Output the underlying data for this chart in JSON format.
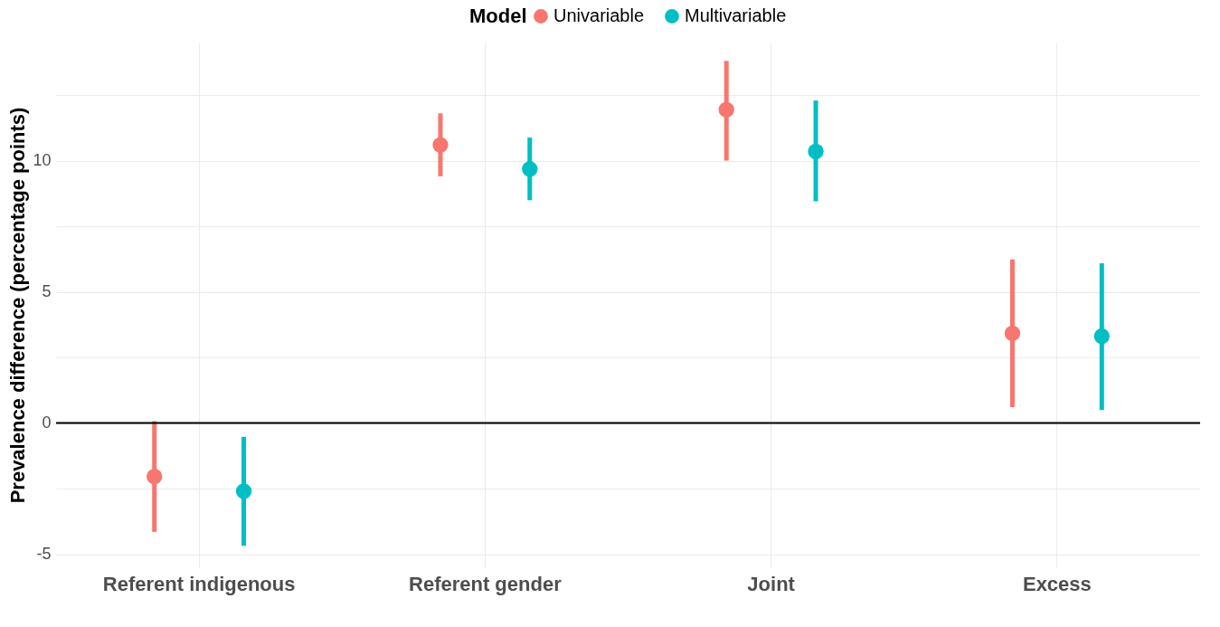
{
  "chart_data": {
    "type": "scatter",
    "ylabel": "Prevalence difference (percentage points)",
    "legend_title": "Model",
    "legend": "top",
    "grid": true,
    "marker": "circle",
    "categories": [
      "Referent indigenous",
      "Referent gender",
      "Joint",
      "Excess"
    ],
    "ylim": [
      -5.5,
      14.5
    ],
    "yticks": [
      -5,
      {
        "value": -2.5,
        "label": null
      },
      0,
      {
        "value": 2.5,
        "label": null
      },
      5,
      {
        "value": 7.5,
        "label": null
      },
      10,
      {
        "value": 12.5,
        "label": null
      }
    ],
    "series": [
      {
        "name": "Univariable",
        "color": "#f8766d",
        "values": [
          -2.04,
          10.6,
          11.94,
          3.42
        ],
        "errors": [
          [
            -4.15,
            0.07
          ],
          [
            9.4,
            11.8
          ],
          [
            10.0,
            13.8
          ],
          [
            0.6,
            6.23
          ]
        ]
      },
      {
        "name": "Multivariable",
        "color": "#00bfc4",
        "values": [
          -2.6,
          9.68,
          10.35,
          3.31
        ],
        "errors": [
          [
            -4.68,
            -0.53
          ],
          [
            8.49,
            10.88
          ],
          [
            8.45,
            12.29
          ],
          [
            0.49,
            6.09
          ]
        ]
      }
    ],
    "ref_lines": [
      {
        "axis": "y",
        "value": 0,
        "color": "#000000"
      }
    ]
  }
}
